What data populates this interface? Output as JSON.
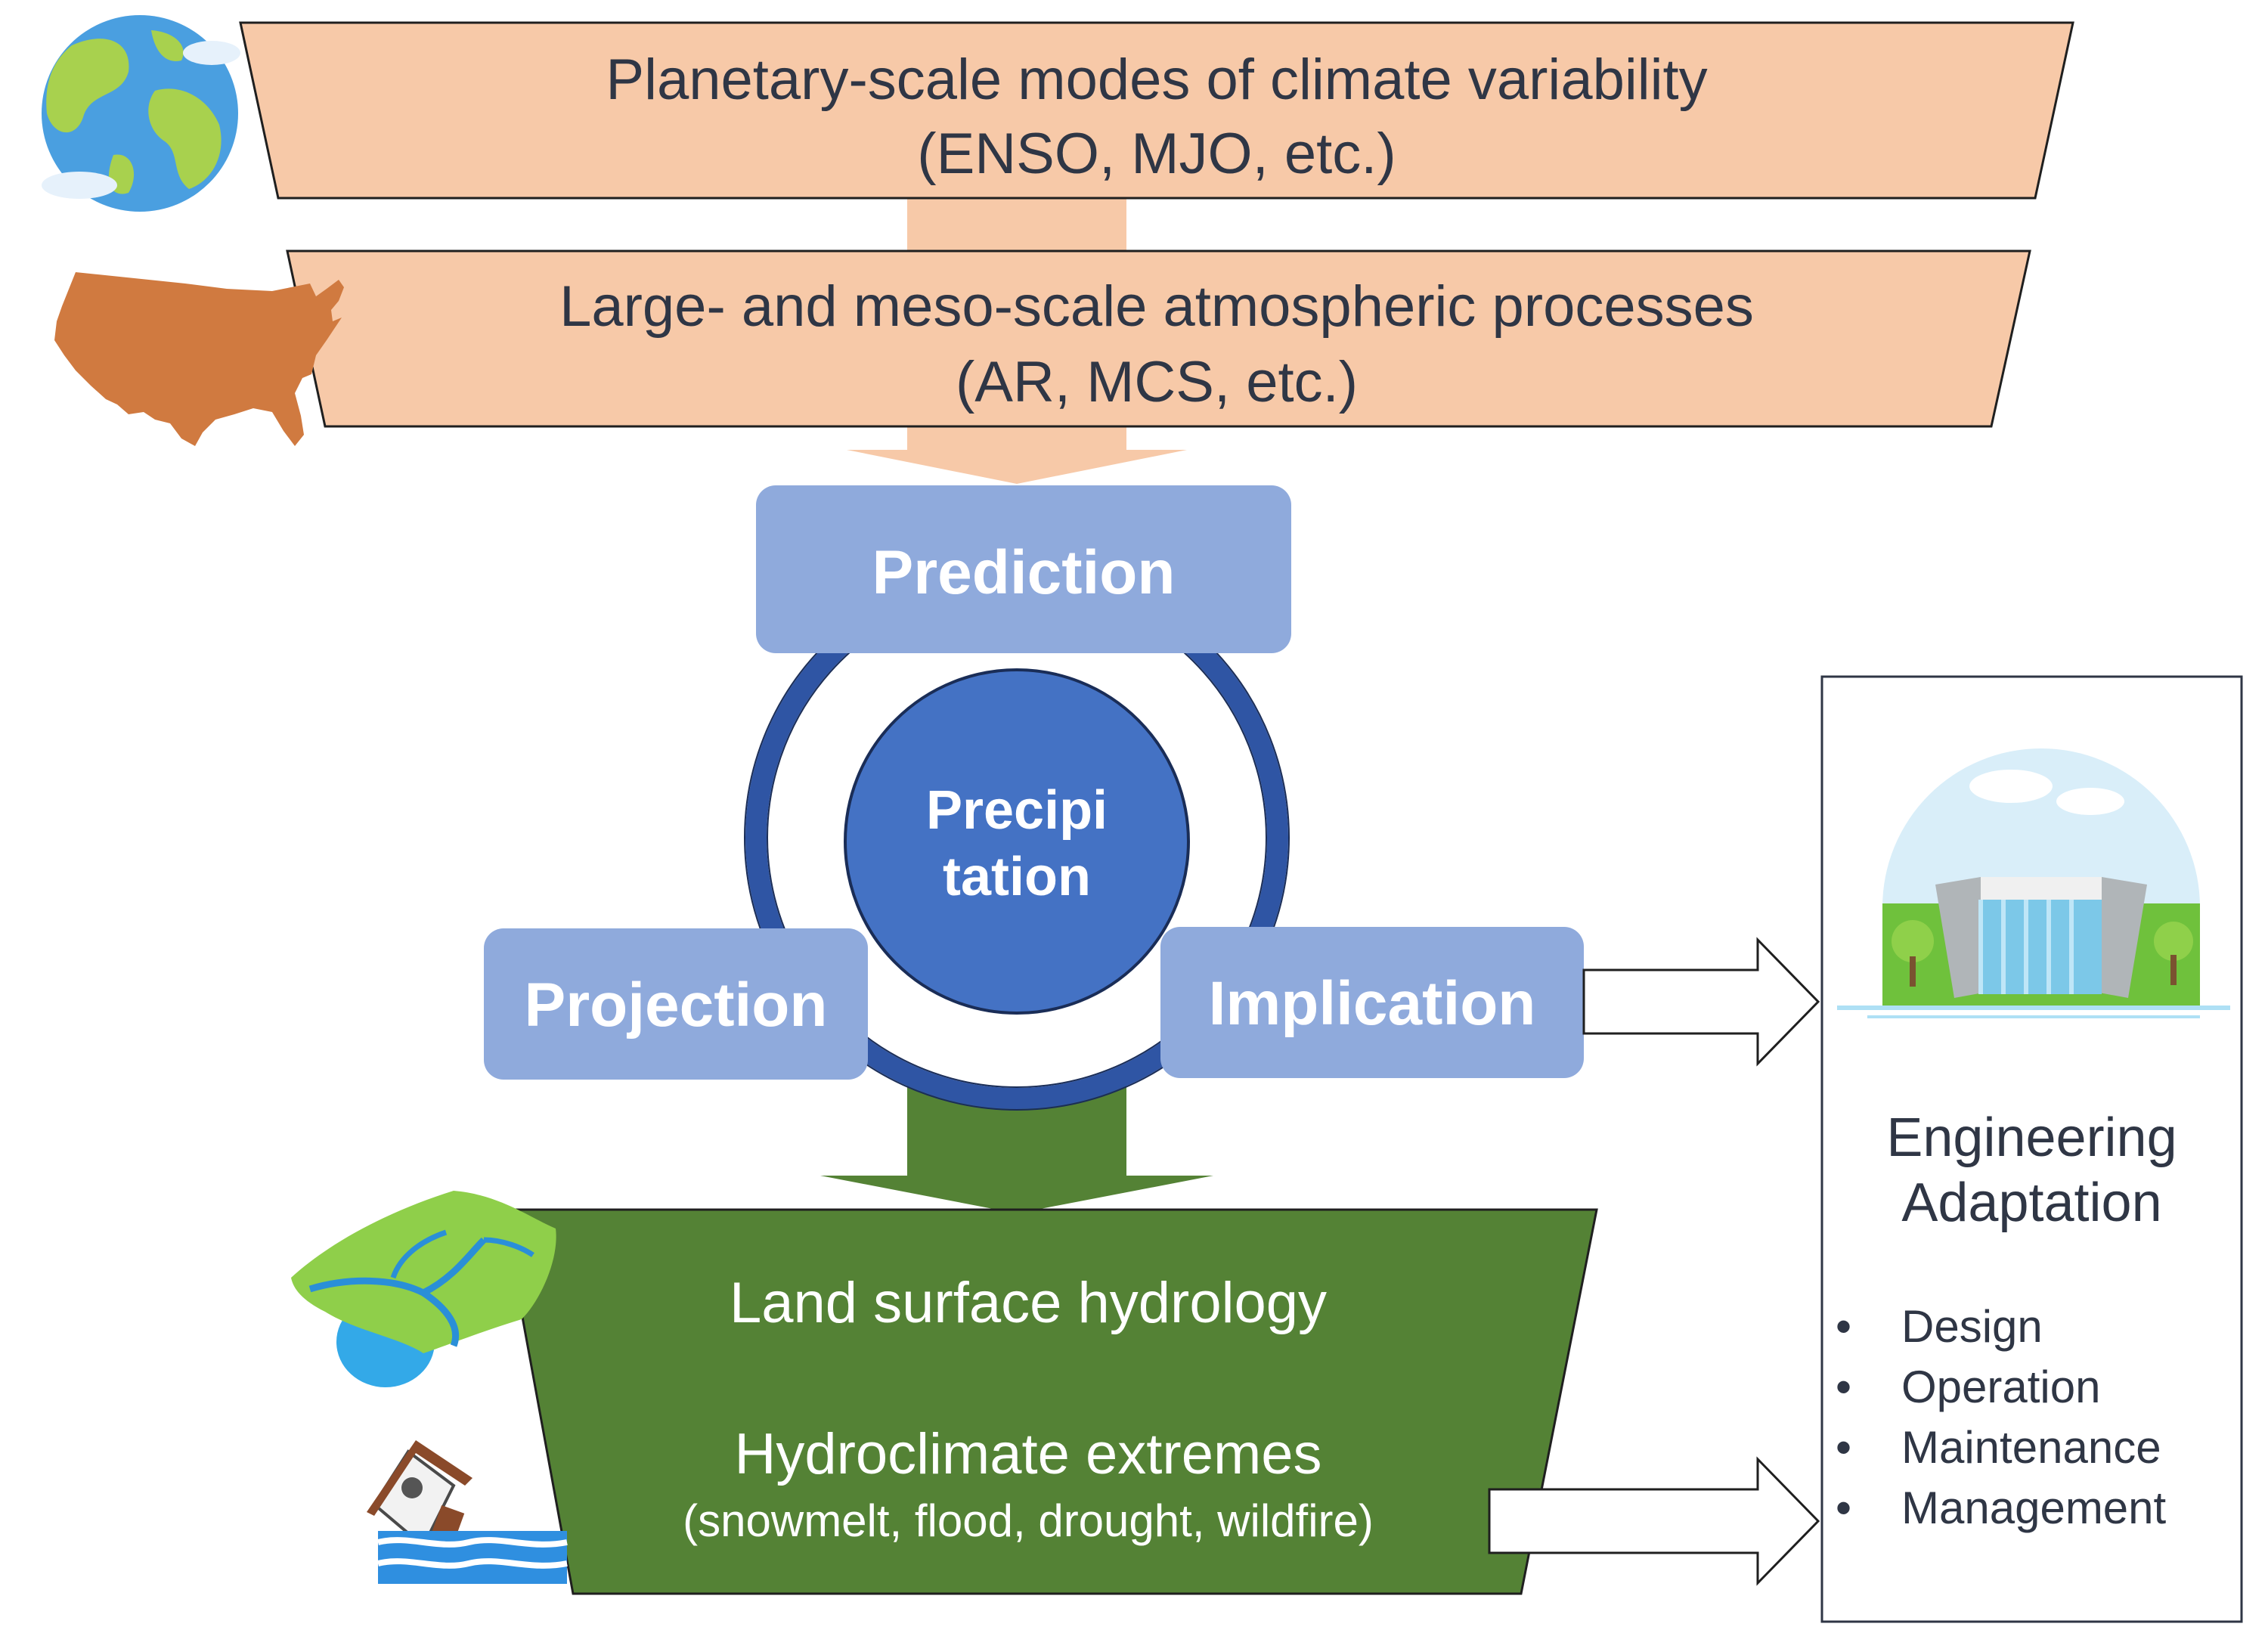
{
  "planetary": {
    "line1": "Planetary-scale modes of climate variability",
    "line2": "(ENSO, MJO, etc.)"
  },
  "atmospheric": {
    "line1": "Large- and meso-scale atmospheric processes",
    "line2": "(AR, MCS, etc.)"
  },
  "cycle": {
    "prediction": "Prediction",
    "projection": "Projection",
    "implication": "Implication",
    "center_line1": "Precipi",
    "center_line2": "tation"
  },
  "hydrology": {
    "line1": "Land surface hydrology",
    "line2": "Hydroclimate extremes",
    "line3": "(snowmelt, flood, drought, wildfire)"
  },
  "engineering": {
    "title_line1": "Engineering",
    "title_line2": "Adaptation",
    "items": [
      "Design",
      "Operation",
      "Maintenance",
      "Management"
    ]
  },
  "colors": {
    "peach": "#f7c9a8",
    "box_blue": "#8faadc",
    "circle_blue": "#4472c4",
    "ring_blue": "#2f55a4",
    "green": "#548235",
    "text_dark": "#2f3645"
  },
  "icons": [
    "earth-icon",
    "usa-map-icon",
    "watershed-icon",
    "flooded-house-icon",
    "dam-icon"
  ]
}
